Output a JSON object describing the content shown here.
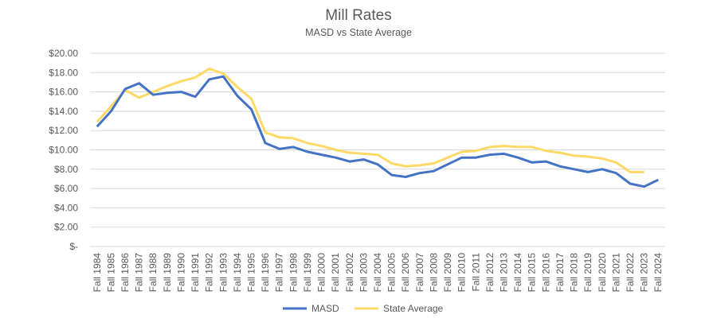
{
  "chart_data": {
    "type": "line",
    "title": "Mill Rates",
    "subtitle": "MASD vs State Average",
    "xlabel": "",
    "ylabel": "",
    "ylim": [
      0,
      20
    ],
    "y_ticks": [
      "$-",
      "$2.00",
      "$4.00",
      "$6.00",
      "$8.00",
      "$10.00",
      "$12.00",
      "$14.00",
      "$16.00",
      "$18.00",
      "$20.00"
    ],
    "grid": true,
    "legend": "bottom",
    "categories": [
      "Fall 1984",
      "Fall 1985",
      "Fall 1986",
      "Fall 1987",
      "Fall 1988",
      "Fall 1989",
      "Fall 1990",
      "Fall 1991",
      "Fall 1992",
      "Fall 1993",
      "Fall 1994",
      "Fall 1995",
      "Fall 1996",
      "Fall 1997",
      "Fall 1998",
      "Fall 1999",
      "Fall 2000",
      "Fall 2001",
      "Fall 2002",
      "Fall 2003",
      "Fall 2004",
      "Fall 2005",
      "Fall 2006",
      "Fall 2007",
      "Fall 2008",
      "Fall 2009",
      "Fall 2010",
      "Fall 2011",
      "Fall 2012",
      "Fall 2013",
      "Fall 2014",
      "Fall 2015",
      "Fall 2016",
      "Fall 2017",
      "Fall 2018",
      "Fall 2019",
      "Fall 2020",
      "Fall 2021",
      "Fall 2022",
      "Fall 2023",
      "Fall 2024"
    ],
    "series": [
      {
        "name": "MASD",
        "color": "#4472C4",
        "values": [
          12.4,
          14.0,
          16.3,
          16.9,
          15.7,
          15.9,
          16.0,
          15.5,
          17.3,
          17.6,
          15.6,
          14.2,
          10.7,
          10.1,
          10.3,
          9.8,
          9.5,
          9.2,
          8.8,
          9.0,
          8.5,
          7.4,
          7.2,
          7.6,
          7.8,
          8.5,
          9.2,
          9.2,
          9.5,
          9.6,
          9.2,
          8.7,
          8.8,
          8.3,
          8.0,
          7.7,
          8.0,
          7.6,
          6.5,
          6.2,
          6.9
        ]
      },
      {
        "name": "State Average",
        "color": "#FFD966",
        "values": [
          12.9,
          14.5,
          16.2,
          15.4,
          16.0,
          16.6,
          17.1,
          17.5,
          18.4,
          17.9,
          16.5,
          15.3,
          11.8,
          11.3,
          11.2,
          10.7,
          10.4,
          10.0,
          9.7,
          9.6,
          9.5,
          8.6,
          8.3,
          8.4,
          8.6,
          9.2,
          9.8,
          9.9,
          10.3,
          10.4,
          10.3,
          10.3,
          9.9,
          9.7,
          9.4,
          9.3,
          9.1,
          8.7,
          7.7,
          7.7,
          null
        ]
      }
    ]
  }
}
